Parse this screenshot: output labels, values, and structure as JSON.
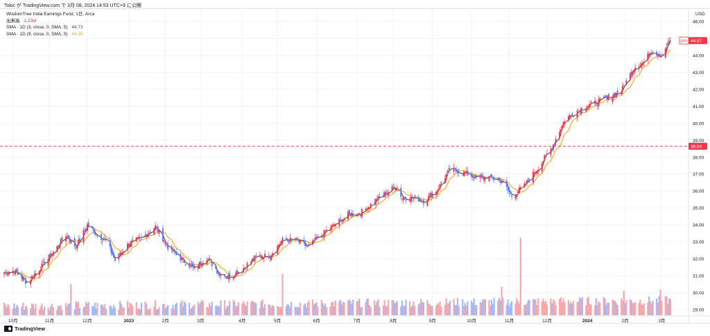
{
  "header": {
    "published_line": "Tokic が TradingView.com で 3月 08, 2024 14:53 UTC+9 に公開"
  },
  "legend": {
    "title": "WisdomTree India Earnings Fund, 1日, Arca",
    "volume_label": "出来高",
    "volume_value": "1.23M",
    "sma3_label": "SMA · 1D (3, close, 0, SMA, 5)",
    "sma3_value": "44.73",
    "sma9_label": "SMA · 1D (9, close, 0, SMA, 5)",
    "sma9_value": "44.35"
  },
  "footer": {
    "brand": "TradingView"
  },
  "colors": {
    "up": "#f23645",
    "down": "#5b7cf5",
    "vol_up": "#f7a8ad",
    "vol_down": "#a7b8f7",
    "sma3": "#4a4a4a",
    "sma9": "#f7a21b",
    "hline": "#f23645",
    "grid": "#f0f3fa",
    "axis_text": "#131722"
  },
  "chart_data": {
    "type": "candlestick",
    "symbol": "EPI",
    "currency": "USD",
    "y_ticks": [
      "29.00",
      "30.00",
      "31.00",
      "32.00",
      "33.00",
      "34.00",
      "35.00",
      "36.00",
      "37.00",
      "38.00",
      "39.00",
      "40.00",
      "41.00",
      "42.00",
      "43.00",
      "44.00",
      "45.00",
      "46.00"
    ],
    "ylim": [
      28.7,
      46.2
    ],
    "x_ticks": [
      {
        "label": "10月",
        "date": "2022-10-03"
      },
      {
        "label": "11月",
        "date": "2022-11-01"
      },
      {
        "label": "12月",
        "date": "2022-12-01"
      },
      {
        "label": "2023",
        "date": "2023-01-03"
      },
      {
        "label": "2月",
        "date": "2023-02-01"
      },
      {
        "label": "3月",
        "date": "2023-03-01"
      },
      {
        "label": "4月",
        "date": "2023-04-03"
      },
      {
        "label": "5月",
        "date": "2023-05-01"
      },
      {
        "label": "6月",
        "date": "2023-06-01"
      },
      {
        "label": "7月",
        "date": "2023-07-03"
      },
      {
        "label": "8月",
        "date": "2023-08-01"
      },
      {
        "label": "9月",
        "date": "2023-09-01"
      },
      {
        "label": "10月",
        "date": "2023-10-02"
      },
      {
        "label": "11月",
        "date": "2023-11-01"
      },
      {
        "label": "12月",
        "date": "2023-12-01"
      },
      {
        "label": "2024",
        "date": "2024-01-02"
      },
      {
        "label": "2月",
        "date": "2024-02-01"
      },
      {
        "label": "3月",
        "date": "2024-03-01"
      }
    ],
    "date_range": [
      "2022-09-26",
      "2024-03-08"
    ],
    "close_anchors": [
      [
        "2022-09-26",
        31.2
      ],
      [
        "2022-10-04",
        31.3
      ],
      [
        "2022-10-14",
        30.6
      ],
      [
        "2022-10-24",
        31.4
      ],
      [
        "2022-11-03",
        32.3
      ],
      [
        "2022-11-14",
        33.4
      ],
      [
        "2022-11-22",
        32.7
      ],
      [
        "2022-12-01",
        34.0
      ],
      [
        "2022-12-09",
        33.4
      ],
      [
        "2022-12-16",
        33.1
      ],
      [
        "2022-12-23",
        31.9
      ],
      [
        "2023-01-03",
        32.9
      ],
      [
        "2023-01-13",
        33.2
      ],
      [
        "2023-01-24",
        33.9
      ],
      [
        "2023-02-03",
        32.7
      ],
      [
        "2023-02-15",
        31.9
      ],
      [
        "2023-02-24",
        31.4
      ],
      [
        "2023-03-06",
        32.1
      ],
      [
        "2023-03-15",
        31.2
      ],
      [
        "2023-03-24",
        30.9
      ],
      [
        "2023-04-03",
        31.4
      ],
      [
        "2023-04-14",
        32.1
      ],
      [
        "2023-04-25",
        32.2
      ],
      [
        "2023-05-05",
        33.1
      ],
      [
        "2023-05-16",
        33.1
      ],
      [
        "2023-05-25",
        32.7
      ],
      [
        "2023-06-05",
        33.4
      ],
      [
        "2023-06-15",
        34.0
      ],
      [
        "2023-06-26",
        34.6
      ],
      [
        "2023-07-06",
        34.7
      ],
      [
        "2023-07-17",
        35.4
      ],
      [
        "2023-07-27",
        35.9
      ],
      [
        "2023-08-03",
        36.3
      ],
      [
        "2023-08-08",
        35.6
      ],
      [
        "2023-08-18",
        35.6
      ],
      [
        "2023-08-25",
        35.4
      ],
      [
        "2023-09-05",
        36.1
      ],
      [
        "2023-09-15",
        37.3
      ],
      [
        "2023-09-25",
        37.1
      ],
      [
        "2023-10-05",
        36.8
      ],
      [
        "2023-10-16",
        36.8
      ],
      [
        "2023-10-26",
        36.6
      ],
      [
        "2023-11-03",
        35.7
      ],
      [
        "2023-11-13",
        36.3
      ],
      [
        "2023-11-24",
        37.4
      ],
      [
        "2023-12-05",
        38.6
      ],
      [
        "2023-12-15",
        40.2
      ],
      [
        "2023-12-26",
        40.8
      ],
      [
        "2024-01-08",
        41.2
      ],
      [
        "2024-01-18",
        41.5
      ],
      [
        "2024-01-29",
        41.9
      ],
      [
        "2024-02-08",
        43.3
      ],
      [
        "2024-02-16",
        43.6
      ],
      [
        "2024-02-22",
        44.3
      ],
      [
        "2024-02-29",
        44.0
      ],
      [
        "2024-03-08",
        44.87
      ]
    ],
    "volume_scale_max_shares": 6000000,
    "volume_spikes": [
      [
        "2022-11-18",
        2400000
      ],
      [
        "2023-05-05",
        3200000
      ],
      [
        "2023-11-10",
        6000000
      ],
      [
        "2023-10-26",
        2200000
      ],
      [
        "2024-01-31",
        1900000
      ],
      [
        "2024-02-29",
        2000000
      ]
    ],
    "price_line": 38.64,
    "last_price": 44.87,
    "sma_periods": [
      3,
      9
    ]
  },
  "price_tags": {
    "symbol": "EPI",
    "last": "44.87",
    "line": "38.64"
  },
  "axis": {
    "currency": "USD"
  }
}
